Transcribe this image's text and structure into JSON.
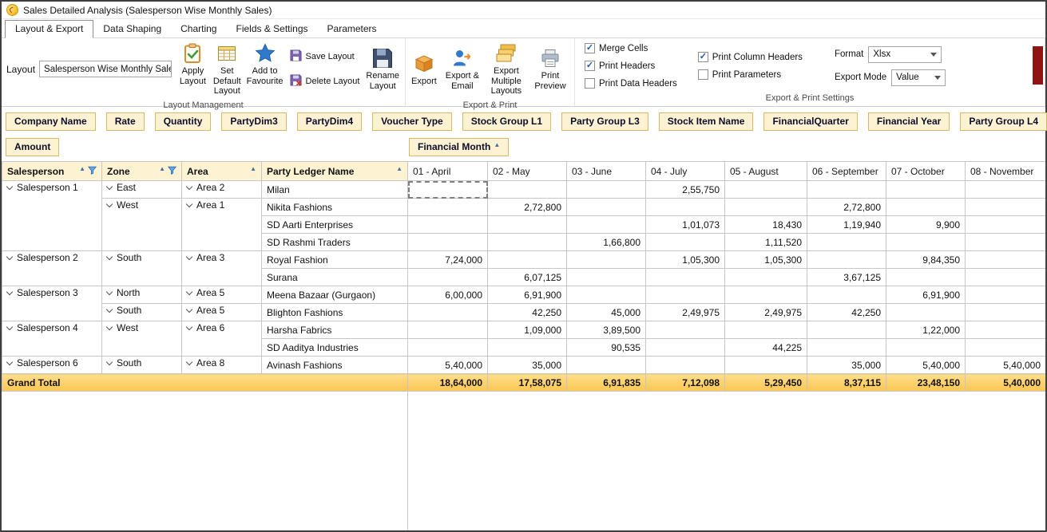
{
  "window": {
    "title": "Sales Detailed Analysis (Salesperson Wise Monthly Sales)"
  },
  "menu_tabs": [
    {
      "label": "Layout & Export",
      "active": true
    },
    {
      "label": "Data Shaping",
      "active": false
    },
    {
      "label": "Charting",
      "active": false
    },
    {
      "label": "Fields & Settings",
      "active": false
    },
    {
      "label": "Parameters",
      "active": false
    }
  ],
  "ribbon": {
    "layout_management": {
      "caption": "Layout Management",
      "layout_label": "Layout",
      "layout_value": "Salesperson Wise Monthly Sales",
      "large_buttons": [
        {
          "label": "Apply Layout",
          "icon": "clipboard-check-icon"
        },
        {
          "label": "Set Default Layout",
          "icon": "layout-grid-icon"
        },
        {
          "label": "Add to Favourite",
          "icon": "star-icon"
        }
      ],
      "small_buttons": [
        {
          "label": "Save Layout",
          "icon": "save-floppy-icon"
        },
        {
          "label": "Delete Layout",
          "icon": "delete-floppy-icon"
        }
      ],
      "rename_button": {
        "label": "Rename Layout",
        "icon": "rename-floppy-icon"
      }
    },
    "export_print": {
      "caption": "Export & Print",
      "buttons": [
        {
          "label": "Export",
          "icon": "export-box-icon"
        },
        {
          "label": "Export & Email",
          "icon": "export-email-icon"
        },
        {
          "label": "Export Multiple Layouts",
          "icon": "export-multiple-icon"
        },
        {
          "label": "Print Preview",
          "icon": "printer-icon"
        }
      ]
    },
    "export_print_settings": {
      "caption": "Export & Print Settings",
      "checkbox_col1": [
        {
          "label": "Merge Cells",
          "checked": true
        },
        {
          "label": "Print Headers",
          "checked": true
        },
        {
          "label": "Print Data Headers",
          "checked": false
        }
      ],
      "checkbox_col2": [
        {
          "label": "Print Column Headers",
          "checked": true
        },
        {
          "label": "Print Parameters",
          "checked": false
        }
      ],
      "format_label": "Format",
      "format_value": "Xlsx",
      "export_mode_label": "Export Mode",
      "export_mode_value": "Value"
    }
  },
  "fields_row1": [
    "Company Name",
    "Rate",
    "Quantity",
    "PartyDim3",
    "PartyDim4",
    "Voucher Type",
    "Stock Group L1",
    "Party Group L3",
    "Stock Item Name",
    "FinancialQuarter",
    "Financial Year",
    "Party Group L4"
  ],
  "fields_row2": [
    "Amount"
  ],
  "column_field": {
    "label": "Financial Month",
    "sort": "asc"
  },
  "pivot": {
    "row_headers": [
      {
        "label": "Salesperson",
        "sort": "asc",
        "filter": true
      },
      {
        "label": "Zone",
        "sort": "asc",
        "filter": true
      },
      {
        "label": "Area",
        "sort": "asc",
        "filter": false
      },
      {
        "label": "Party Ledger Name",
        "sort": "asc",
        "filter": false
      }
    ],
    "month_columns": [
      "01 - April",
      "02 - May",
      "03 - June",
      "04 - July",
      "05 - August",
      "06 - September",
      "07 - October",
      "08 - November"
    ],
    "rows": [
      {
        "salesperson": {
          "label": "Salesperson 1",
          "span": 4
        },
        "zone": {
          "label": "East",
          "span": 1
        },
        "area": {
          "label": "Area 2",
          "span": 1
        },
        "party": "Milan",
        "values": [
          "",
          "",
          "",
          "2,55,750",
          "",
          "",
          "",
          ""
        ]
      },
      {
        "zone": {
          "label": "West",
          "span": 3
        },
        "area": {
          "label": "Area 1",
          "span": 3
        },
        "party": "Nikita Fashions",
        "values": [
          "",
          "2,72,800",
          "",
          "",
          "",
          "2,72,800",
          "",
          ""
        ]
      },
      {
        "party": "SD Aarti Enterprises",
        "values": [
          "",
          "",
          "",
          "1,01,073",
          "18,430",
          "1,19,940",
          "9,900",
          ""
        ]
      },
      {
        "party": "SD Rashmi Traders",
        "values": [
          "",
          "",
          "1,66,800",
          "",
          "1,11,520",
          "",
          "",
          ""
        ]
      },
      {
        "salesperson": {
          "label": "Salesperson 2",
          "span": 2
        },
        "zone": {
          "label": "South",
          "span": 2
        },
        "area": {
          "label": "Area 3",
          "span": 2
        },
        "party": "Royal Fashion",
        "values": [
          "7,24,000",
          "",
          "",
          "1,05,300",
          "1,05,300",
          "",
          "9,84,350",
          ""
        ]
      },
      {
        "party": "Surana",
        "values": [
          "",
          "6,07,125",
          "",
          "",
          "",
          "3,67,125",
          "",
          ""
        ]
      },
      {
        "salesperson": {
          "label": "Salesperson 3",
          "span": 2
        },
        "zone": {
          "label": "North",
          "span": 1
        },
        "area": {
          "label": "Area 5",
          "span": 1
        },
        "party": "Meena Bazaar (Gurgaon)",
        "values": [
          "6,00,000",
          "6,91,900",
          "",
          "",
          "",
          "",
          "6,91,900",
          ""
        ]
      },
      {
        "zone": {
          "label": "South",
          "span": 1
        },
        "area": {
          "label": "Area 5",
          "span": 1
        },
        "party": "Blighton Fashions",
        "values": [
          "",
          "42,250",
          "45,000",
          "2,49,975",
          "2,49,975",
          "42,250",
          "",
          ""
        ]
      },
      {
        "salesperson": {
          "label": "Salesperson 4",
          "span": 2
        },
        "zone": {
          "label": "West",
          "span": 2
        },
        "area": {
          "label": "Area 6",
          "span": 2
        },
        "party": "Harsha Fabrics",
        "values": [
          "",
          "1,09,000",
          "3,89,500",
          "",
          "",
          "",
          "1,22,000",
          ""
        ]
      },
      {
        "party": "SD Aaditya Industries",
        "values": [
          "",
          "",
          "90,535",
          "",
          "44,225",
          "",
          "",
          ""
        ]
      },
      {
        "salesperson": {
          "label": "Salesperson 6",
          "span": 1
        },
        "zone": {
          "label": "South",
          "span": 1
        },
        "area": {
          "label": "Area 8",
          "span": 1
        },
        "party": "Avinash Fashions",
        "values": [
          "5,40,000",
          "35,000",
          "",
          "",
          "",
          "35,000",
          "5,40,000",
          "5,40,000"
        ]
      }
    ],
    "grand_total": {
      "label": "Grand Total",
      "values": [
        "18,64,000",
        "17,58,075",
        "6,91,835",
        "7,12,098",
        "5,29,450",
        "8,37,115",
        "23,48,150",
        "5,40,000"
      ]
    },
    "selection": {
      "row": 0,
      "col": 0
    }
  }
}
